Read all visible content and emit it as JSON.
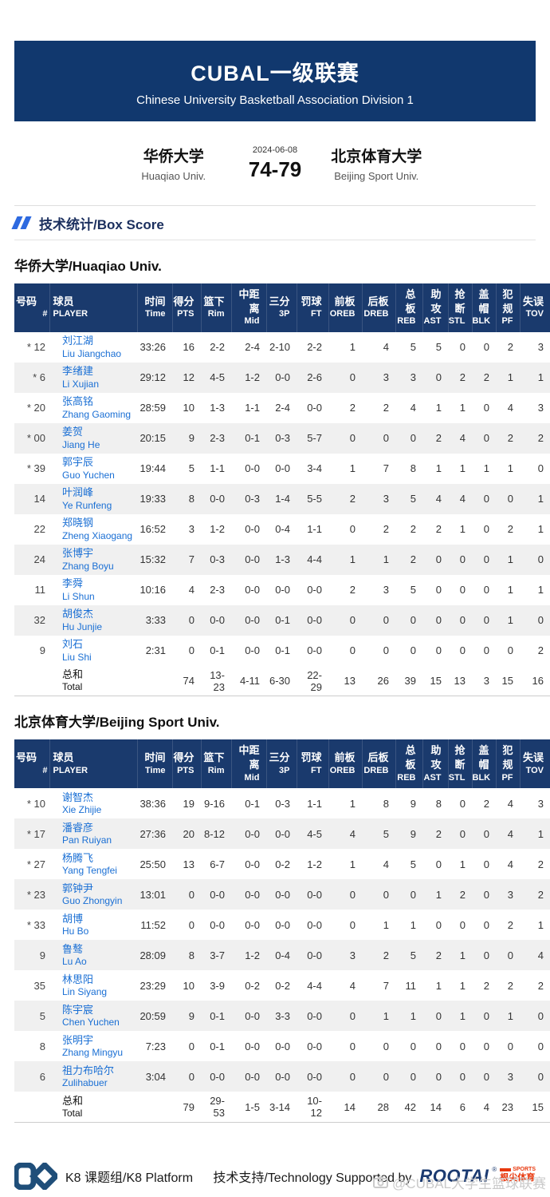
{
  "header": {
    "title": "CUBAL一级联赛",
    "subtitle": "Chinese University Basketball Association Division 1",
    "bg_color": "#11386e"
  },
  "match": {
    "date": "2024-06-08",
    "score": "74-79",
    "home": {
      "name_cn": "华侨大学",
      "name_en": "Huaqiao Univ."
    },
    "away": {
      "name_cn": "北京体育大学",
      "name_en": "Beijing Sport Univ."
    }
  },
  "section": {
    "title": "技术统计/Box Score",
    "accent_color": "#2e6ae0"
  },
  "columns": [
    {
      "cn": "号码",
      "en": "#"
    },
    {
      "cn": "球员",
      "en": "PLAYER"
    },
    {
      "cn": "时间",
      "en": "Time"
    },
    {
      "cn": "得分",
      "en": "PTS"
    },
    {
      "cn": "篮下",
      "en": "Rim"
    },
    {
      "cn": "中距离",
      "en": "Mid"
    },
    {
      "cn": "三分",
      "en": "3P"
    },
    {
      "cn": "罚球",
      "en": "FT"
    },
    {
      "cn": "前板",
      "en": "OREB"
    },
    {
      "cn": "后板",
      "en": "DREB"
    },
    {
      "cn": "总板",
      "en": "REB"
    },
    {
      "cn": "助攻",
      "en": "AST"
    },
    {
      "cn": "抢断",
      "en": "STL"
    },
    {
      "cn": "盖帽",
      "en": "BLK"
    },
    {
      "cn": "犯规",
      "en": "PF"
    },
    {
      "cn": "失误",
      "en": "TOV"
    }
  ],
  "teams": [
    {
      "title": "华侨大学/Huaqiao Univ.",
      "players": [
        {
          "starter": true,
          "no": "12",
          "cn": "刘江湖",
          "en": "Liu Jiangchao",
          "stats": [
            "33:26",
            "16",
            "2-2",
            "2-4",
            "2-10",
            "2-2",
            "1",
            "4",
            "5",
            "5",
            "0",
            "0",
            "2",
            "3"
          ]
        },
        {
          "starter": true,
          "no": "6",
          "cn": "李绪建",
          "en": "Li Xujian",
          "stats": [
            "29:12",
            "12",
            "4-5",
            "1-2",
            "0-0",
            "2-6",
            "0",
            "3",
            "3",
            "0",
            "2",
            "2",
            "1",
            "1"
          ]
        },
        {
          "starter": true,
          "no": "20",
          "cn": "张高铭",
          "en": "Zhang Gaoming",
          "stats": [
            "28:59",
            "10",
            "1-3",
            "1-1",
            "2-4",
            "0-0",
            "2",
            "2",
            "4",
            "1",
            "1",
            "0",
            "4",
            "3"
          ]
        },
        {
          "starter": true,
          "no": "00",
          "cn": "姜贺",
          "en": "Jiang He",
          "stats": [
            "20:15",
            "9",
            "2-3",
            "0-1",
            "0-3",
            "5-7",
            "0",
            "0",
            "0",
            "2",
            "4",
            "0",
            "2",
            "2"
          ]
        },
        {
          "starter": true,
          "no": "39",
          "cn": "郭宇辰",
          "en": "Guo Yuchen",
          "stats": [
            "19:44",
            "5",
            "1-1",
            "0-0",
            "0-0",
            "3-4",
            "1",
            "7",
            "8",
            "1",
            "1",
            "1",
            "1",
            "0"
          ]
        },
        {
          "starter": false,
          "no": "14",
          "cn": "叶润峰",
          "en": "Ye Runfeng",
          "stats": [
            "19:33",
            "8",
            "0-0",
            "0-3",
            "1-4",
            "5-5",
            "2",
            "3",
            "5",
            "4",
            "4",
            "0",
            "0",
            "1"
          ]
        },
        {
          "starter": false,
          "no": "22",
          "cn": "郑晓钢",
          "en": "Zheng Xiaogang",
          "stats": [
            "16:52",
            "3",
            "1-2",
            "0-0",
            "0-4",
            "1-1",
            "0",
            "2",
            "2",
            "2",
            "1",
            "0",
            "2",
            "1"
          ]
        },
        {
          "starter": false,
          "no": "24",
          "cn": "张博宇",
          "en": "Zhang Boyu",
          "stats": [
            "15:32",
            "7",
            "0-3",
            "0-0",
            "1-3",
            "4-4",
            "1",
            "1",
            "2",
            "0",
            "0",
            "0",
            "1",
            "0"
          ]
        },
        {
          "starter": false,
          "no": "11",
          "cn": "李舜",
          "en": "Li Shun",
          "stats": [
            "10:16",
            "4",
            "2-3",
            "0-0",
            "0-0",
            "0-0",
            "2",
            "3",
            "5",
            "0",
            "0",
            "0",
            "1",
            "1"
          ]
        },
        {
          "starter": false,
          "no": "32",
          "cn": "胡俊杰",
          "en": "Hu Junjie",
          "stats": [
            "3:33",
            "0",
            "0-0",
            "0-0",
            "0-1",
            "0-0",
            "0",
            "0",
            "0",
            "0",
            "0",
            "0",
            "1",
            "0"
          ]
        },
        {
          "starter": false,
          "no": "9",
          "cn": "刘石",
          "en": "Liu Shi",
          "stats": [
            "2:31",
            "0",
            "0-1",
            "0-0",
            "0-1",
            "0-0",
            "0",
            "0",
            "0",
            "0",
            "0",
            "0",
            "0",
            "2"
          ]
        }
      ],
      "total": {
        "cn": "总和",
        "en": "Total",
        "stats": [
          "",
          "74",
          "13-23",
          "4-11",
          "6-30",
          "22-29",
          "13",
          "26",
          "39",
          "15",
          "13",
          "3",
          "15",
          "16"
        ]
      }
    },
    {
      "title": "北京体育大学/Beijing Sport Univ.",
      "players": [
        {
          "starter": true,
          "no": "10",
          "cn": "谢智杰",
          "en": "Xie Zhijie",
          "stats": [
            "38:36",
            "19",
            "9-16",
            "0-1",
            "0-3",
            "1-1",
            "1",
            "8",
            "9",
            "8",
            "0",
            "2",
            "4",
            "3"
          ]
        },
        {
          "starter": true,
          "no": "17",
          "cn": "潘睿彦",
          "en": "Pan Ruiyan",
          "stats": [
            "27:36",
            "20",
            "8-12",
            "0-0",
            "0-0",
            "4-5",
            "4",
            "5",
            "9",
            "2",
            "0",
            "0",
            "4",
            "1"
          ]
        },
        {
          "starter": true,
          "no": "27",
          "cn": "杨腾飞",
          "en": "Yang Tengfei",
          "stats": [
            "25:50",
            "13",
            "6-7",
            "0-0",
            "0-2",
            "1-2",
            "1",
            "4",
            "5",
            "0",
            "1",
            "0",
            "4",
            "2"
          ]
        },
        {
          "starter": true,
          "no": "23",
          "cn": "郭钟尹",
          "en": "Guo Zhongyin",
          "stats": [
            "13:01",
            "0",
            "0-0",
            "0-0",
            "0-0",
            "0-0",
            "0",
            "0",
            "0",
            "1",
            "2",
            "0",
            "3",
            "2"
          ]
        },
        {
          "starter": true,
          "no": "33",
          "cn": "胡博",
          "en": "Hu Bo",
          "stats": [
            "11:52",
            "0",
            "0-0",
            "0-0",
            "0-0",
            "0-0",
            "0",
            "1",
            "1",
            "0",
            "0",
            "0",
            "2",
            "1"
          ]
        },
        {
          "starter": false,
          "no": "9",
          "cn": "鲁骜",
          "en": "Lu Ao",
          "stats": [
            "28:09",
            "8",
            "3-7",
            "1-2",
            "0-4",
            "0-0",
            "3",
            "2",
            "5",
            "2",
            "1",
            "0",
            "0",
            "4"
          ]
        },
        {
          "starter": false,
          "no": "35",
          "cn": "林思阳",
          "en": "Lin Siyang",
          "stats": [
            "23:29",
            "10",
            "3-9",
            "0-2",
            "0-2",
            "4-4",
            "4",
            "7",
            "11",
            "1",
            "1",
            "2",
            "2",
            "2"
          ]
        },
        {
          "starter": false,
          "no": "5",
          "cn": "陈宇宸",
          "en": "Chen Yuchen",
          "stats": [
            "20:59",
            "9",
            "0-1",
            "0-0",
            "3-3",
            "0-0",
            "0",
            "1",
            "1",
            "0",
            "1",
            "0",
            "1",
            "0"
          ]
        },
        {
          "starter": false,
          "no": "8",
          "cn": "张明宇",
          "en": "Zhang Mingyu",
          "stats": [
            "7:23",
            "0",
            "0-1",
            "0-0",
            "0-0",
            "0-0",
            "0",
            "0",
            "0",
            "0",
            "0",
            "0",
            "0",
            "0"
          ]
        },
        {
          "starter": false,
          "no": "6",
          "cn": "祖力布哈尔",
          "en": "Zulihabuer",
          "stats": [
            "3:04",
            "0",
            "0-0",
            "0-0",
            "0-0",
            "0-0",
            "0",
            "0",
            "0",
            "0",
            "0",
            "0",
            "3",
            "0"
          ]
        }
      ],
      "total": {
        "cn": "总和",
        "en": "Total",
        "stats": [
          "",
          "79",
          "29-53",
          "1-5",
          "3-14",
          "10-12",
          "14",
          "28",
          "42",
          "14",
          "6",
          "4",
          "23",
          "15"
        ]
      }
    }
  ],
  "footer": {
    "k8_label": "K8 课题组/K8 Platform",
    "support_label": "技术支持/Technology Supported by",
    "rootai_word": "ROOTAI",
    "rootai_reg": "®",
    "rootai_sports": "SPORTS",
    "rootai_sub": "根尖体育"
  },
  "watermark": "@CUBAL大学生篮球联赛"
}
